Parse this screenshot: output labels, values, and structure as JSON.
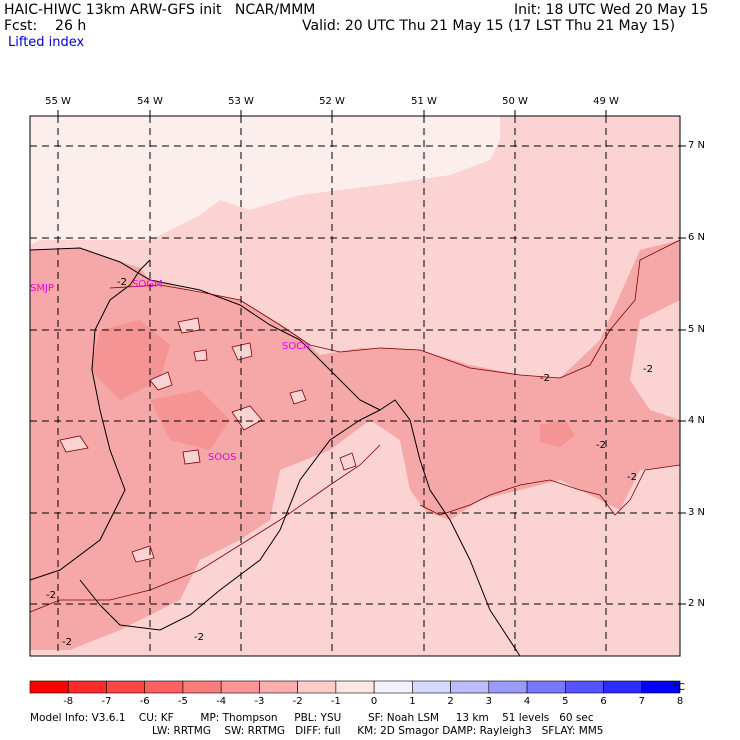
{
  "header": {
    "title": "HAIC-HIWC 13km ARW-GFS init   NCAR/MMM",
    "forecast": "Fcst:    26 h",
    "field": "Lifted index",
    "init": "Init: 18 UTC Wed 20 May 15",
    "valid": "Valid: 20 UTC Thu 21 May 15 (17 LST Thu 21 May 15)"
  },
  "map": {
    "longitudes": [
      "55 W",
      "54 W",
      "53 W",
      "52 W",
      "51 W",
      "50 W",
      "49 W"
    ],
    "latitudes": [
      "7 N",
      "6 N",
      "5 N",
      "4 N",
      "3 N",
      "2 N"
    ],
    "stations": [
      "SMJP",
      "SOGM",
      "SOCA",
      "SOOS"
    ],
    "contour_labels": [
      "-2",
      "-2",
      "-2",
      "-2",
      "-2",
      "-2",
      "-2",
      "-2"
    ]
  },
  "colorbar": {
    "ticks": [
      "-8",
      "-7",
      "-6",
      "-5",
      "-4",
      "-3",
      "-2",
      "-1",
      "0",
      "1",
      "2",
      "3",
      "4",
      "5",
      "6",
      "7",
      "8"
    ],
    "unit": "°C",
    "colors": [
      "#ff0000",
      "#ff2a2a",
      "#ff4646",
      "#ff6060",
      "#ff7a7a",
      "#ff9494",
      "#ffaeae",
      "#ffcccc",
      "#ffe6e6",
      "#f2f2ff",
      "#d8d8ff",
      "#bcbcff",
      "#9a9aff",
      "#7878ff",
      "#5454ff",
      "#2c2cff",
      "#0000ff"
    ]
  },
  "fill_colors": {
    "outline": "#000000",
    "lightest": "#fdeeee",
    "light": "#fcd3d3",
    "medium": "#f6a7a7",
    "strong": "#f49494"
  },
  "model_info": {
    "line1": "Model Info: V3.6.1    CU: KF        MP: Thompson     PBL: YSU        SF: Noah LSM     13 km    51 levels   60 sec",
    "line2": "LW: RRTMG    SW: RRTMG   DIFF: full     KM: 2D Smagor DAMP: Rayleigh3   SFLAY: MM5"
  }
}
